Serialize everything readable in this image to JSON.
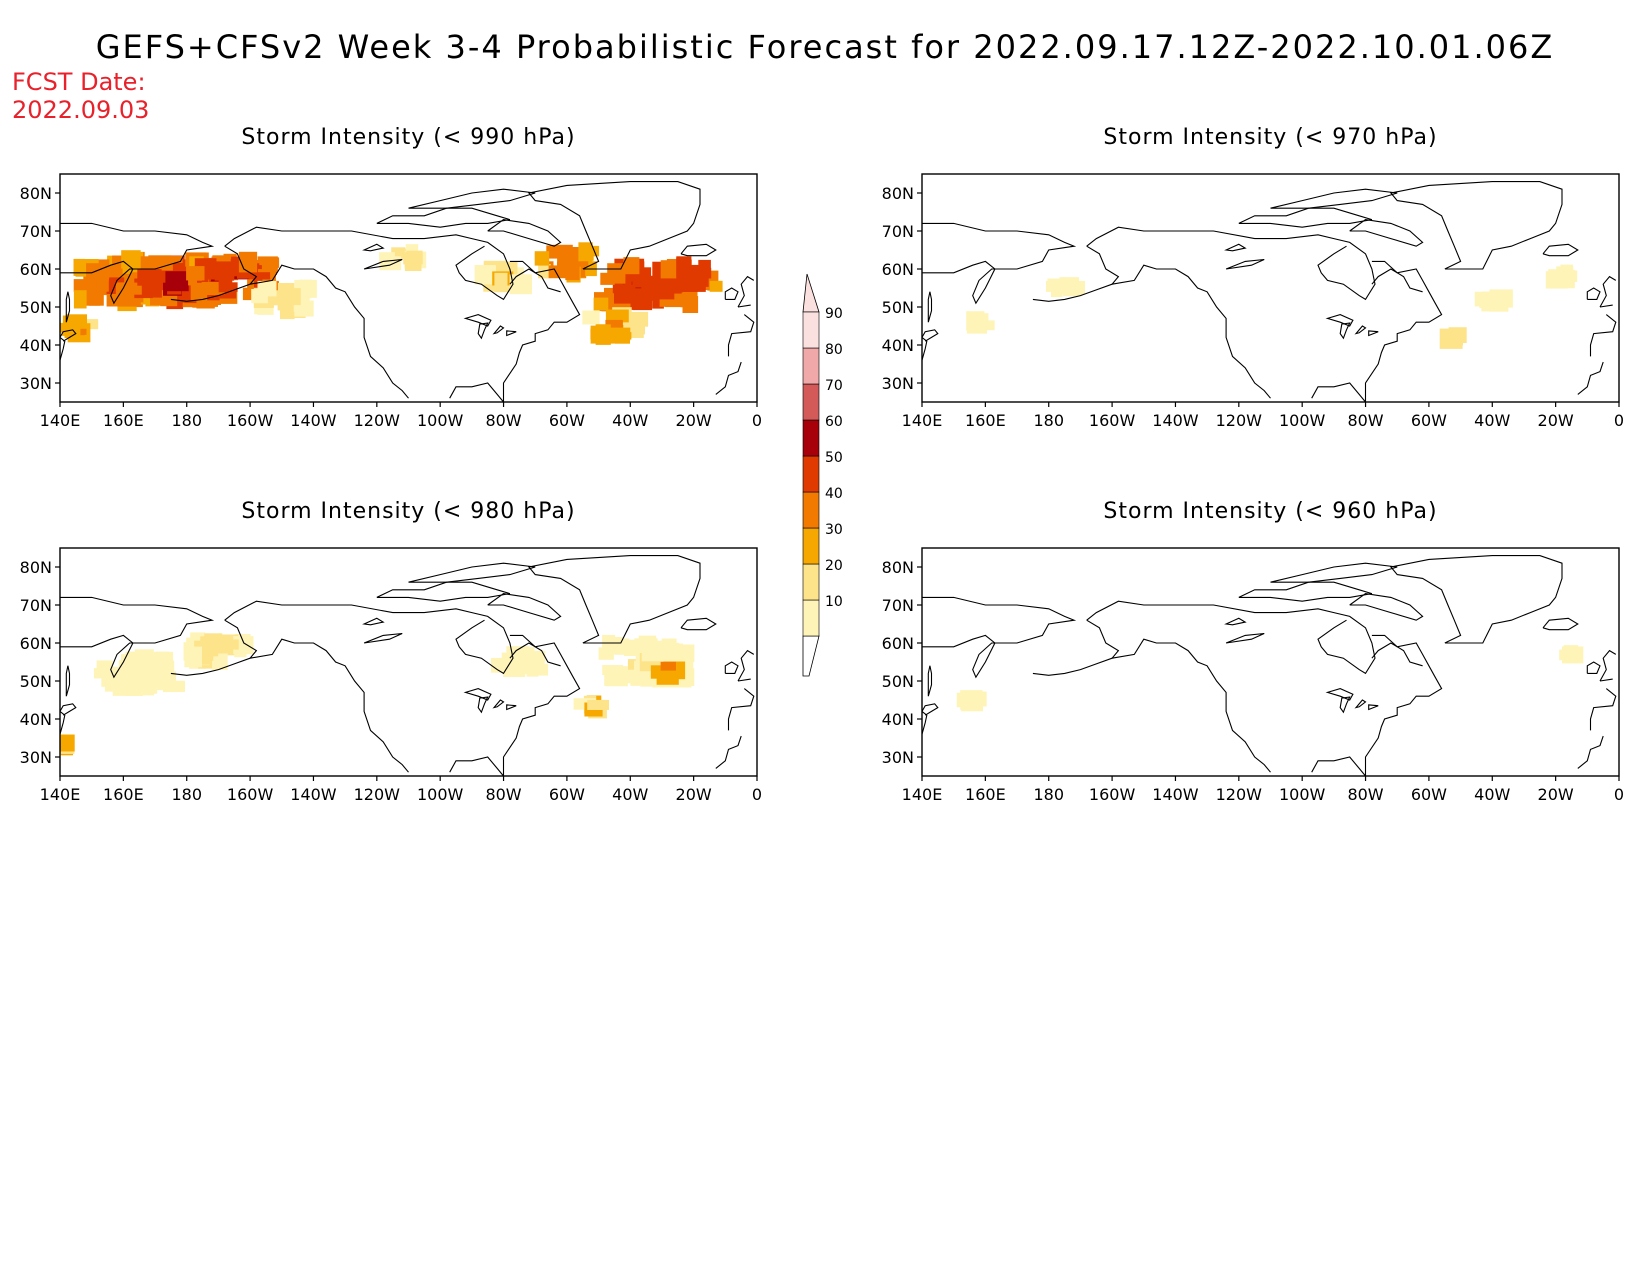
{
  "title": "GEFS+CFSv2 Week 3-4 Probabilistic Forecast for 2022.09.17.12Z-2022.10.01.06Z",
  "forecast_date_label": "FCST Date:",
  "forecast_date": "2022.09.03",
  "lon_ticks": [
    "140E",
    "160E",
    "180",
    "160W",
    "140W",
    "120W",
    "100W",
    "80W",
    "60W",
    "40W",
    "20W",
    "0"
  ],
  "lat_ticks": [
    "80N",
    "70N",
    "60N",
    "50N",
    "40N",
    "30N"
  ],
  "colorbar": {
    "levels": [
      "10",
      "20",
      "30",
      "40",
      "50",
      "60",
      "70",
      "80",
      "90"
    ],
    "colors": [
      "#fff4b8",
      "#fde48a",
      "#f6a800",
      "#f27a00",
      "#e13a00",
      "#a8000a",
      "#d45a5a",
      "#f0a8a8",
      "#fbe0e0"
    ]
  },
  "panels": [
    {
      "title": "Storm Intensity (< 990 hPa)",
      "blobs": [
        {
          "lon": 158,
          "lat": 56,
          "size": 18,
          "level": 4
        },
        {
          "lon": 178,
          "lat": 57,
          "size": 20,
          "level": 5
        },
        {
          "lon": -165,
          "lat": 58,
          "size": 16,
          "level": 5
        },
        {
          "lon": -150,
          "lat": 52,
          "size": 10,
          "level": 2
        },
        {
          "lon": 145,
          "lat": 45,
          "size": 6,
          "level": 3
        },
        {
          "lon": -112,
          "lat": 63,
          "size": 6,
          "level": 2
        },
        {
          "lon": -80,
          "lat": 58,
          "size": 8,
          "level": 2
        },
        {
          "lon": -60,
          "lat": 62,
          "size": 10,
          "level": 4
        },
        {
          "lon": -35,
          "lat": 56,
          "size": 18,
          "level": 5
        },
        {
          "lon": -20,
          "lat": 58,
          "size": 10,
          "level": 5
        },
        {
          "lon": -45,
          "lat": 45,
          "size": 10,
          "level": 3
        }
      ]
    },
    {
      "title": "Storm Intensity (< 970 hPa)",
      "blobs": [
        {
          "lon": -175,
          "lat": 55,
          "size": 4,
          "level": 0
        },
        {
          "lon": 158,
          "lat": 46,
          "size": 3,
          "level": 0
        },
        {
          "lon": -52,
          "lat": 42,
          "size": 3,
          "level": 2
        },
        {
          "lon": -40,
          "lat": 52,
          "size": 4,
          "level": 0
        },
        {
          "lon": -18,
          "lat": 58,
          "size": 4,
          "level": 0
        }
      ]
    },
    {
      "title": "Storm Intensity (< 980 hPa)",
      "blobs": [
        {
          "lon": 165,
          "lat": 52,
          "size": 14,
          "level": 1
        },
        {
          "lon": -170,
          "lat": 58,
          "size": 10,
          "level": 2
        },
        {
          "lon": -75,
          "lat": 55,
          "size": 8,
          "level": 0
        },
        {
          "lon": -35,
          "lat": 55,
          "size": 16,
          "level": 1
        },
        {
          "lon": -28,
          "lat": 52,
          "size": 4,
          "level": 3
        },
        {
          "lon": -52,
          "lat": 43,
          "size": 4,
          "level": 2
        },
        {
          "lon": 143,
          "lat": 33,
          "size": 3,
          "level": 3
        }
      ]
    },
    {
      "title": "Storm Intensity (< 960 hPa)",
      "blobs": [
        {
          "lon": 155,
          "lat": 45,
          "size": 3,
          "level": 0
        },
        {
          "lon": -15,
          "lat": 57,
          "size": 2,
          "level": 0
        }
      ]
    }
  ]
}
